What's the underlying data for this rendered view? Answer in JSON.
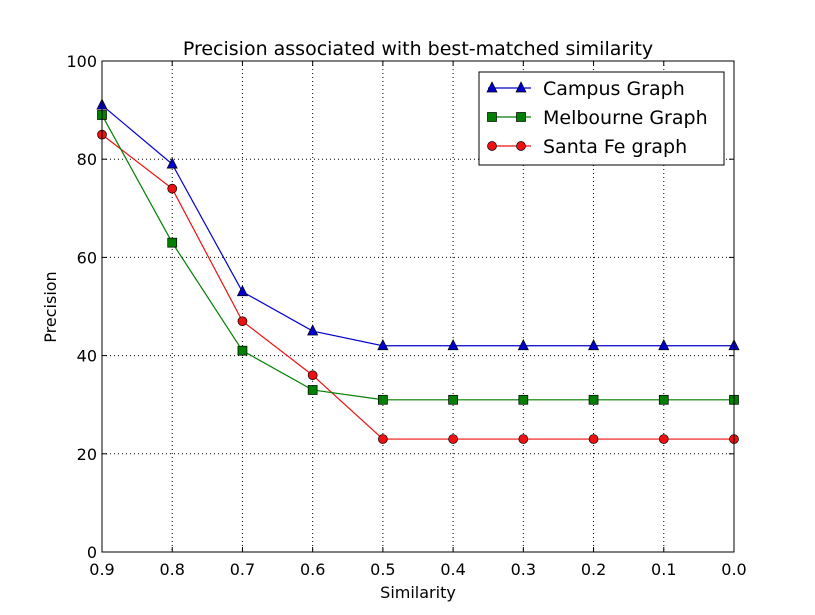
{
  "chart_data": {
    "type": "line",
    "title": "Precision associated with best-matched similarity",
    "xlabel": "Similarity",
    "ylabel": "Precision",
    "x": [
      0.9,
      0.8,
      0.7,
      0.6,
      0.5,
      0.4,
      0.3,
      0.2,
      0.1,
      0.0
    ],
    "x_tick_labels": [
      "0.9",
      "0.8",
      "0.7",
      "0.6",
      "0.5",
      "0.4",
      "0.3",
      "0.2",
      "0.1",
      "0.0"
    ],
    "xlim": [
      0.9,
      0.0
    ],
    "x_reversed": true,
    "ylim": [
      0,
      100
    ],
    "y_ticks": [
      0,
      20,
      40,
      60,
      80,
      100
    ],
    "y_tick_labels": [
      "0",
      "20",
      "40",
      "60",
      "80",
      "100"
    ],
    "grid": "dotted",
    "legend_position": "top-right",
    "series": [
      {
        "name": "Campus Graph",
        "color": "#0000cc",
        "marker": "triangle",
        "values": [
          91,
          79,
          53,
          45,
          42,
          42,
          42,
          42,
          42,
          42
        ]
      },
      {
        "name": "Melbourne Graph",
        "color": "#007f00",
        "marker": "square",
        "values": [
          89,
          63,
          41,
          33,
          31,
          31,
          31,
          31,
          31,
          31
        ]
      },
      {
        "name": "Santa Fe graph",
        "color": "#ee1111",
        "marker": "circle",
        "values": [
          85,
          74,
          47,
          36,
          23,
          23,
          23,
          23,
          23,
          23
        ]
      }
    ]
  }
}
